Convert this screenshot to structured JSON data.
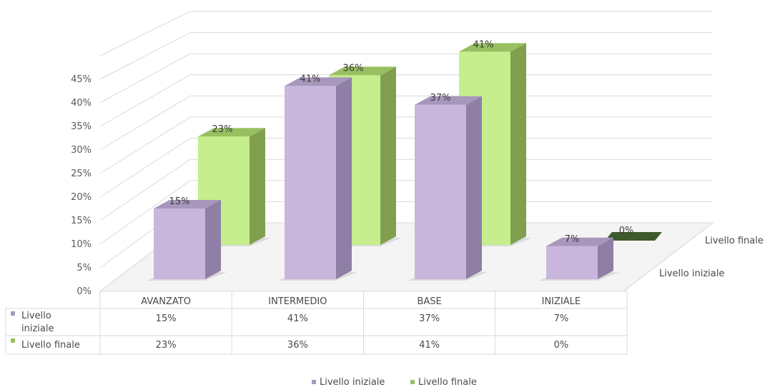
{
  "chart_data": {
    "type": "bar",
    "categories": [
      "AVANZATO",
      "INTERMEDIO",
      "BASE",
      "INIZIALE"
    ],
    "series": [
      {
        "name": "Livello iniziale",
        "values": [
          15,
          41,
          37,
          7
        ],
        "labels": [
          "15%",
          "41%",
          "37%",
          "7%"
        ]
      },
      {
        "name": "Livello finale",
        "values": [
          23,
          36,
          41,
          0
        ],
        "labels": [
          "23%",
          "36%",
          "41%",
          "0%"
        ]
      }
    ],
    "table_rows": [
      {
        "label": "Livello iniziale",
        "cells": [
          "15%",
          "41%",
          "37%",
          "7%"
        ]
      },
      {
        "label": "Livello finale",
        "cells": [
          "23%",
          "36%",
          "41%",
          "0%"
        ]
      }
    ],
    "y_ticks": [
      "0%",
      "5%",
      "10%",
      "15%",
      "20%",
      "25%",
      "30%",
      "35%",
      "40%",
      "45%"
    ],
    "ylim": [
      0,
      45
    ],
    "depth_labels": [
      "Livello iniziale",
      "Livello finale"
    ],
    "legend": [
      "Livello iniziale",
      "Livello finale"
    ],
    "legend_position": "bottom",
    "grid": true,
    "style": "3d-column",
    "colors": {
      "iniziale_front": "#c9b6dc",
      "iniziale_side": "#8f7fa6",
      "iniziale_top": "#a897bd",
      "finale_front": "#c6ee8c",
      "finale_side": "#80a050",
      "finale_top": "#98c061",
      "finale_zero": "#3f5a2c",
      "grid": "#d9d9d9"
    }
  }
}
